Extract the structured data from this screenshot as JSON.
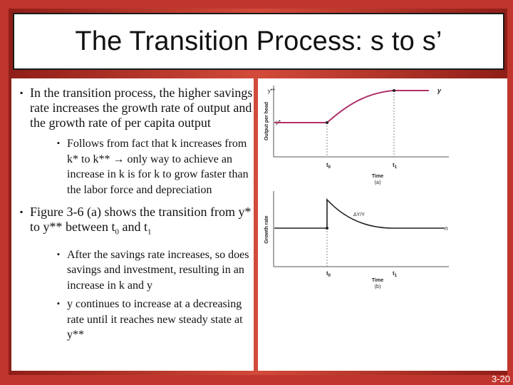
{
  "title": "The Transition Process: s to s’",
  "bullets": [
    {
      "text": "In the transition process, the higher savings rate increases the growth rate of output and the growth rate of per capita output",
      "sub": [
        "Follows from fact that k increases from k* to k** → only way to achieve an increase in k is for k to grow faster than the labor force and depreciation"
      ]
    },
    {
      "text_pre": "Figure 3-6 (a) shows the transition from y* to y** between t",
      "t0_sub": "0",
      "and": " and t",
      "t1_sub": "1",
      "sub": [
        "After the savings rate increases, so does savings and investment, resulting in an increase in k and y",
        "y continues to increase at a decreasing rate until it reaches new steady state at y**"
      ]
    }
  ],
  "figure": {
    "top": {
      "ylabel": "Output per head",
      "y_high": "y**",
      "y_low": "y*",
      "curve_label": "y",
      "t0": "t",
      "t0_sub": "0",
      "t1": "t",
      "t1_sub": "1",
      "xlabel": "Time",
      "panel": "(a)"
    },
    "bottom": {
      "ylabel": "Growth rate",
      "curve_label": "ΔY/Y",
      "baseline_label": "n",
      "t0": "t",
      "t0_sub": "0",
      "t1": "t",
      "t1_sub": "1",
      "xlabel": "Time",
      "panel": "(b)"
    },
    "curve_color": "#b0306a"
  },
  "slide_number": "3-20",
  "bullet_glyph": "▪"
}
